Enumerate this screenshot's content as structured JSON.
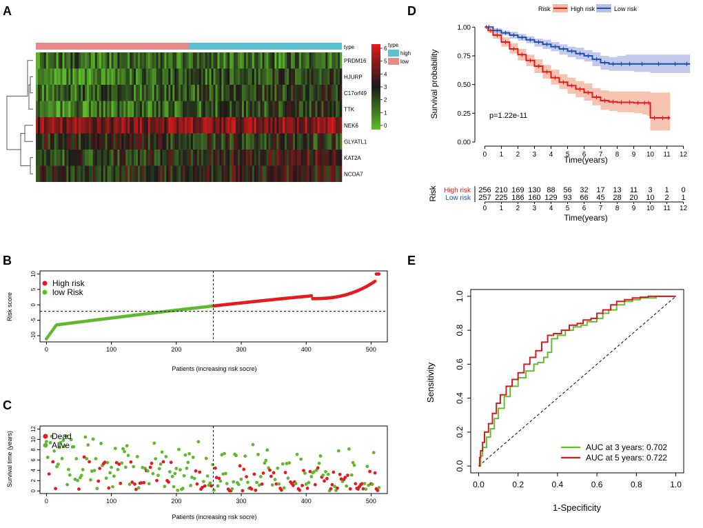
{
  "panels": {
    "A": "A",
    "B": "B",
    "C": "C",
    "D": "D",
    "E": "E"
  },
  "colors": {
    "high": "#e41a1c",
    "low_green": "#5fb82e",
    "km_high": "#e31a1c",
    "km_low": "#1f4fa8",
    "km_high_band": "#f4b9a2",
    "km_low_band": "#b9bfe6",
    "anno_high": "#5bc0cf",
    "anno_low": "#e88a8a",
    "roc3": "#5fbf2a",
    "roc5": "#d7191c"
  },
  "chart_data": [
    {
      "panel": "A",
      "type": "heatmap",
      "annotation_label": "type",
      "legend_title": "type",
      "annotation_legend": [
        "high",
        "low"
      ],
      "genes": [
        "PRDM16",
        "HJURP",
        "C17orf49",
        "TTK",
        "NEK6",
        "GLYATL1",
        "KAT2A",
        "NCOA7"
      ],
      "colorbar_ticks": [
        "6",
        "5",
        "4",
        "3",
        "2",
        "1",
        "0"
      ],
      "n_low_columns": 256,
      "n_high_columns": 257,
      "gene_mean_levels": [
        0.25,
        0.3,
        0.35,
        0.3,
        0.75,
        0.45,
        0.5,
        0.5
      ],
      "gene_trend": [
        0.0,
        0.25,
        0.2,
        0.3,
        0.05,
        -0.1,
        0.3,
        0.1
      ]
    },
    {
      "panel": "B",
      "type": "scatter",
      "xlabel": "Patients (increasing risk socre)",
      "ylabel": "Risk score",
      "legend": [
        "High risk",
        "low Risk"
      ],
      "xticks": [
        0,
        100,
        200,
        300,
        400,
        500
      ],
      "yticks": [
        -10,
        -5,
        0,
        5,
        10
      ],
      "xlim": [
        -10,
        525
      ],
      "ylim": [
        -12,
        11
      ],
      "cutoff_index": 257,
      "cutoff_score": -2.1,
      "n_points": 513,
      "min_score": -11,
      "max_score": 10
    },
    {
      "panel": "C",
      "type": "scatter",
      "xlabel": "Patients (increasing risk socre)",
      "ylabel": "Survival time (years)",
      "legend": [
        "Dead",
        "Alive"
      ],
      "xticks": [
        0,
        100,
        200,
        300,
        400,
        500
      ],
      "yticks": [
        0,
        2,
        4,
        6,
        8,
        10,
        12
      ],
      "xlim": [
        -10,
        525
      ],
      "ylim": [
        -0.5,
        12.6
      ],
      "cutoff_index": 257,
      "n_points": 513
    },
    {
      "panel": "D",
      "type": "line",
      "legend_title": "Risk",
      "legend": [
        "High risk",
        "Low risk"
      ],
      "xlabel": "Time(years)",
      "ylabel": "Survival probability",
      "xticks": [
        0,
        1,
        2,
        3,
        4,
        5,
        6,
        7,
        8,
        9,
        10,
        11,
        12
      ],
      "yticks": [
        "0.00",
        "0.25",
        "0.50",
        "0.75",
        "1.00"
      ],
      "xlim": [
        -0.6,
        12.6
      ],
      "ylim": [
        0,
        1.02
      ],
      "pvalue": "p=1.22e-11",
      "series": [
        {
          "name": "High risk",
          "x": [
            0,
            0.2,
            0.5,
            1,
            1.5,
            2,
            2.5,
            3,
            3.5,
            4,
            4.5,
            5,
            5.5,
            6,
            6.5,
            7,
            7.5,
            8,
            8.5,
            9,
            9.5,
            9.8,
            10,
            10.5,
            11,
            11.2
          ],
          "y": [
            1.0,
            0.97,
            0.93,
            0.87,
            0.81,
            0.76,
            0.71,
            0.66,
            0.61,
            0.56,
            0.52,
            0.49,
            0.46,
            0.43,
            0.39,
            0.36,
            0.35,
            0.345,
            0.345,
            0.34,
            0.34,
            0.34,
            0.21,
            0.21,
            0.21,
            0.21
          ],
          "lo": [
            1.0,
            0.95,
            0.9,
            0.83,
            0.77,
            0.71,
            0.66,
            0.6,
            0.55,
            0.5,
            0.46,
            0.42,
            0.39,
            0.36,
            0.32,
            0.28,
            0.27,
            0.26,
            0.26,
            0.25,
            0.24,
            0.23,
            0.1,
            0.1,
            0.1,
            0.1
          ],
          "hi": [
            1.0,
            0.99,
            0.96,
            0.91,
            0.86,
            0.81,
            0.76,
            0.72,
            0.67,
            0.63,
            0.59,
            0.56,
            0.53,
            0.51,
            0.47,
            0.45,
            0.44,
            0.44,
            0.44,
            0.44,
            0.44,
            0.44,
            0.43,
            0.43,
            0.43,
            0.43
          ]
        },
        {
          "name": "Low risk",
          "x": [
            0,
            0.5,
            1,
            1.5,
            2,
            2.5,
            3,
            3.5,
            4,
            4.5,
            5,
            5.5,
            6,
            6.5,
            7,
            7.5,
            8,
            8.5,
            9,
            10,
            11,
            12,
            12.4
          ],
          "y": [
            1.0,
            0.97,
            0.95,
            0.93,
            0.91,
            0.89,
            0.87,
            0.85,
            0.83,
            0.81,
            0.79,
            0.77,
            0.75,
            0.72,
            0.69,
            0.68,
            0.68,
            0.68,
            0.68,
            0.68,
            0.68,
            0.68,
            0.68
          ],
          "lo": [
            1.0,
            0.95,
            0.93,
            0.9,
            0.88,
            0.86,
            0.83,
            0.81,
            0.79,
            0.76,
            0.74,
            0.72,
            0.7,
            0.66,
            0.63,
            0.62,
            0.62,
            0.62,
            0.61,
            0.6,
            0.6,
            0.6,
            0.6
          ],
          "hi": [
            1.0,
            0.99,
            0.97,
            0.96,
            0.94,
            0.92,
            0.9,
            0.89,
            0.87,
            0.85,
            0.83,
            0.82,
            0.8,
            0.78,
            0.75,
            0.74,
            0.75,
            0.76,
            0.76,
            0.76,
            0.76,
            0.76,
            0.76
          ]
        }
      ]
    },
    {
      "panel": "D-table",
      "type": "table",
      "title": "Risk",
      "xlabel": "Time(years)",
      "times": [
        0,
        1,
        2,
        3,
        4,
        5,
        6,
        7,
        8,
        9,
        10,
        11,
        12
      ],
      "rows": [
        {
          "name": "High risk",
          "values": [
            256,
            210,
            169,
            130,
            88,
            56,
            32,
            17,
            13,
            11,
            3,
            1,
            0
          ]
        },
        {
          "name": "Low risk",
          "values": [
            257,
            225,
            186,
            160,
            129,
            93,
            66,
            45,
            28,
            20,
            10,
            2,
            1
          ]
        }
      ]
    },
    {
      "panel": "E",
      "type": "line",
      "xlabel": "1-Specificity",
      "ylabel": "Sensitivity",
      "xticks": [
        "0.0",
        "0.2",
        "0.4",
        "0.6",
        "0.8",
        "1.0"
      ],
      "yticks": [
        "0.0",
        "0.2",
        "0.4",
        "0.6",
        "0.8",
        "1.0"
      ],
      "xlim": [
        -0.04,
        1.04
      ],
      "ylim": [
        -0.04,
        1.04
      ],
      "series": [
        {
          "name": "AUC at 3 years: 0.702",
          "x": [
            0,
            0.01,
            0.02,
            0.04,
            0.06,
            0.08,
            0.1,
            0.13,
            0.16,
            0.2,
            0.24,
            0.28,
            0.3,
            0.33,
            0.35,
            0.37,
            0.4,
            0.44,
            0.48,
            0.52,
            0.55,
            0.6,
            0.63,
            0.66,
            0.7,
            0.74,
            0.78,
            0.82,
            0.86,
            0.9,
            0.95,
            1.0
          ],
          "y": [
            0,
            0.06,
            0.11,
            0.17,
            0.22,
            0.28,
            0.34,
            0.41,
            0.47,
            0.52,
            0.56,
            0.6,
            0.61,
            0.64,
            0.67,
            0.75,
            0.77,
            0.8,
            0.82,
            0.83,
            0.85,
            0.87,
            0.9,
            0.92,
            0.95,
            0.97,
            0.98,
            0.99,
            0.99,
            1.0,
            1.0,
            1.0
          ]
        },
        {
          "name": "AUC at 5 years: 0.722",
          "x": [
            0,
            0.005,
            0.01,
            0.02,
            0.03,
            0.05,
            0.07,
            0.09,
            0.11,
            0.14,
            0.17,
            0.2,
            0.23,
            0.26,
            0.29,
            0.32,
            0.35,
            0.38,
            0.42,
            0.46,
            0.5,
            0.53,
            0.57,
            0.6,
            0.63,
            0.67,
            0.7,
            0.74,
            0.78,
            0.82,
            0.86,
            0.9,
            0.95,
            1.0
          ],
          "y": [
            0,
            0.05,
            0.09,
            0.14,
            0.2,
            0.25,
            0.31,
            0.37,
            0.42,
            0.47,
            0.51,
            0.55,
            0.6,
            0.64,
            0.68,
            0.73,
            0.77,
            0.78,
            0.8,
            0.83,
            0.84,
            0.86,
            0.87,
            0.9,
            0.92,
            0.95,
            0.97,
            0.98,
            0.99,
            0.995,
            1.0,
            1.0,
            1.0,
            1.0
          ]
        }
      ]
    }
  ]
}
